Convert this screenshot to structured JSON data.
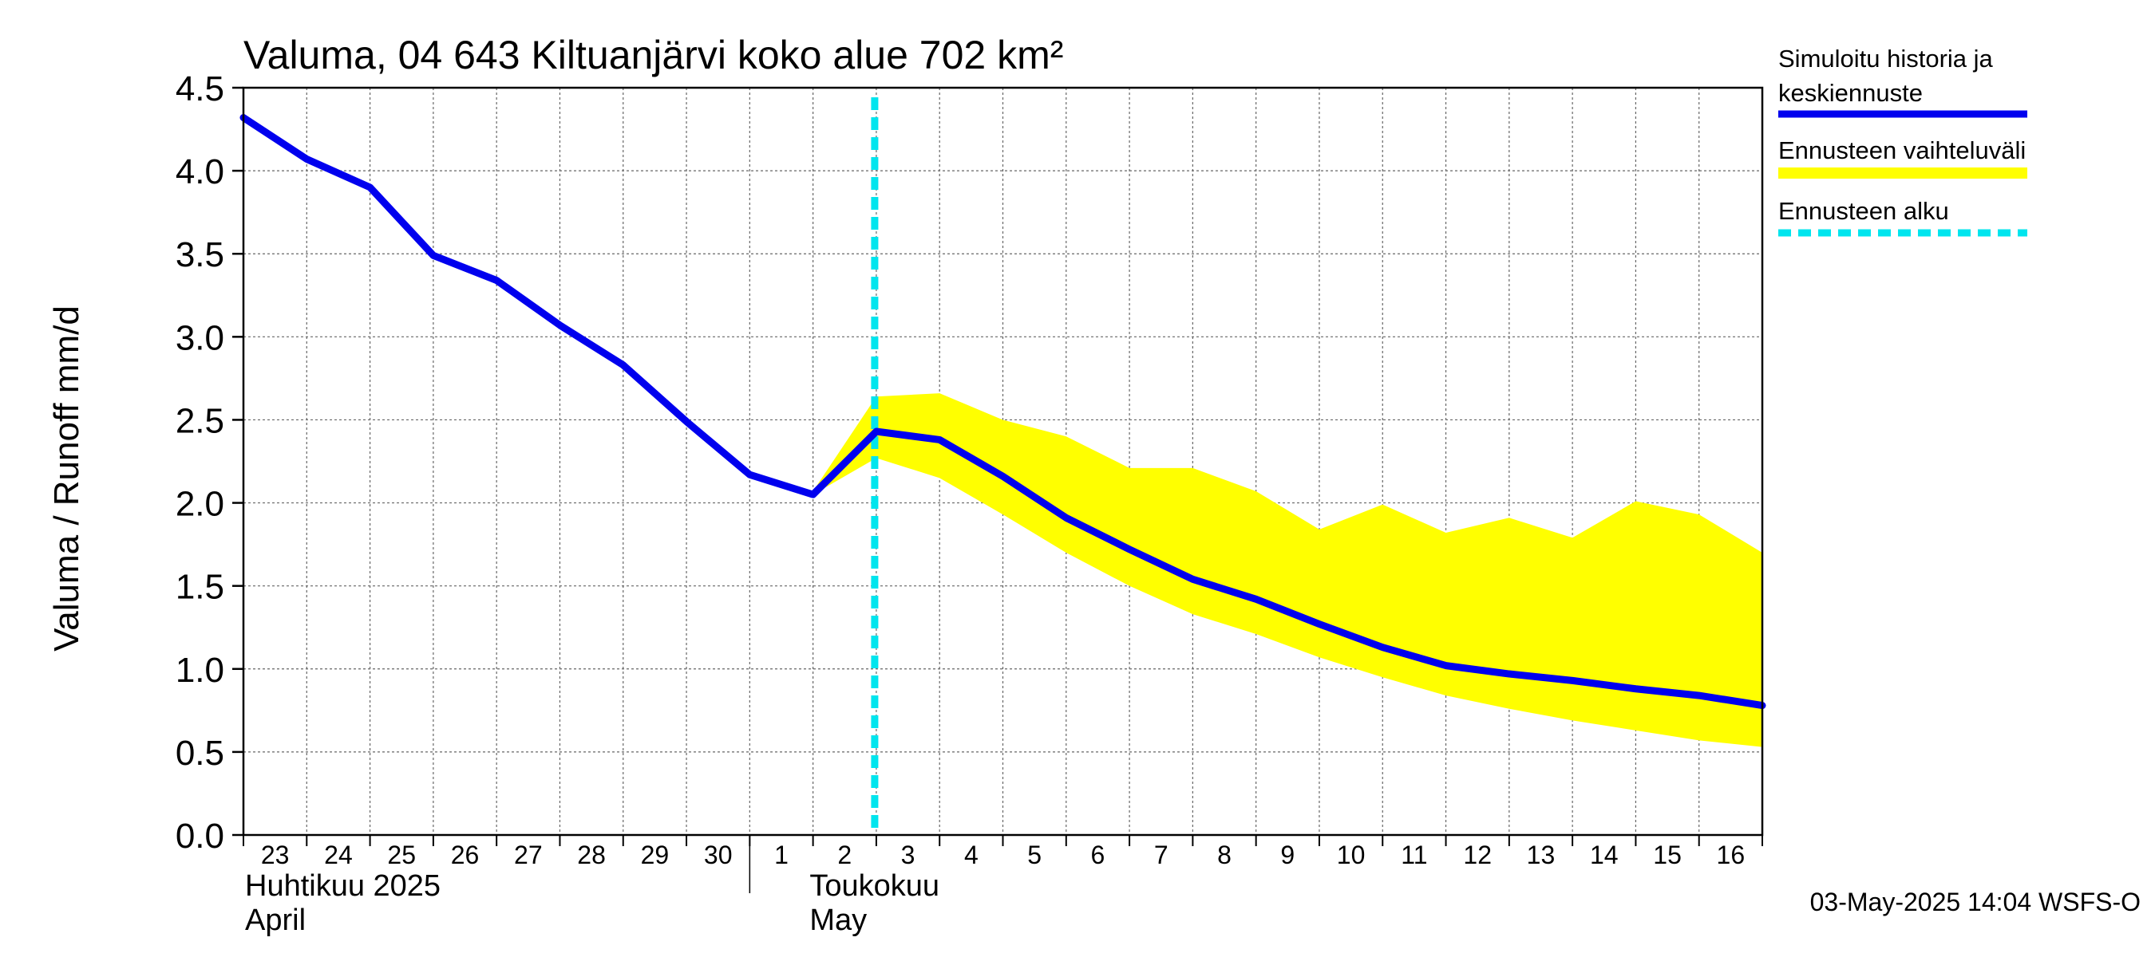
{
  "chart_data": {
    "type": "line",
    "title": "Valuma, 04 643 Kiltuanjärvi koko alue 702 km²",
    "ylabel": "Valuma / Runoff     mm/d",
    "xlabel": "",
    "ylim": [
      0,
      4.5
    ],
    "y_ticks": [
      "0.0",
      "0.5",
      "1.0",
      "1.5",
      "2.0",
      "2.5",
      "3.0",
      "3.5",
      "4.0",
      "4.5"
    ],
    "x_tick_labels": [
      "23",
      "24",
      "25",
      "26",
      "27",
      "28",
      "29",
      "30",
      "1",
      "2",
      "3",
      "4",
      "5",
      "6",
      "7",
      "8",
      "9",
      "10",
      "11",
      "12",
      "13",
      "14",
      "15",
      "16"
    ],
    "month_labels": [
      {
        "line1": "Huhtikuu  2025",
        "line2": "April",
        "start_day_index": 0
      },
      {
        "line1": "Toukokuu",
        "line2": "May",
        "start_day_index": 8
      }
    ],
    "grid": true,
    "forecast_start_date": "2025-05-03",
    "series": [
      {
        "name": "Simuloitu historia ja keskiennuste",
        "color": "#0000ee",
        "x": [
          "2025-04-23",
          "2025-04-24",
          "2025-04-25",
          "2025-04-26",
          "2025-04-27",
          "2025-04-28",
          "2025-04-29",
          "2025-04-30",
          "2025-05-01",
          "2025-05-02",
          "2025-05-03",
          "2025-05-04",
          "2025-05-05",
          "2025-05-06",
          "2025-05-07",
          "2025-05-08",
          "2025-05-09",
          "2025-05-10",
          "2025-05-11",
          "2025-05-12",
          "2025-05-13",
          "2025-05-14",
          "2025-05-15",
          "2025-05-16",
          "2025-05-17"
        ],
        "values": [
          4.32,
          4.07,
          3.9,
          3.49,
          3.34,
          3.07,
          2.83,
          2.49,
          2.17,
          2.05,
          2.43,
          2.38,
          2.16,
          1.91,
          1.72,
          1.54,
          1.42,
          1.27,
          1.13,
          1.02,
          0.97,
          0.93,
          0.88,
          0.84,
          0.78
        ]
      },
      {
        "name": "Ennusteen vaihteluväli",
        "color": "#ffff00",
        "x": [
          "2025-05-02",
          "2025-05-03",
          "2025-05-04",
          "2025-05-05",
          "2025-05-06",
          "2025-05-07",
          "2025-05-08",
          "2025-05-09",
          "2025-05-10",
          "2025-05-11",
          "2025-05-12",
          "2025-05-13",
          "2025-05-14",
          "2025-05-15",
          "2025-05-16",
          "2025-05-17"
        ],
        "lower": [
          2.05,
          2.27,
          2.15,
          1.93,
          1.7,
          1.5,
          1.33,
          1.21,
          1.07,
          0.95,
          0.84,
          0.76,
          0.69,
          0.63,
          0.57,
          0.53
        ],
        "upper": [
          2.07,
          2.64,
          2.66,
          2.5,
          2.4,
          2.21,
          2.21,
          2.07,
          1.84,
          1.99,
          1.82,
          1.91,
          1.79,
          2.01,
          1.93,
          1.7
        ]
      },
      {
        "name": "Ennusteen alku",
        "color": "#00e5ee"
      }
    ],
    "legend": {
      "position": "right",
      "entries": [
        {
          "label": "Simuloitu historia ja",
          "label2": "keskiennuste",
          "color": "#0000ee",
          "style": "solid"
        },
        {
          "label": "Ennusteen vaihteluväli",
          "color": "#ffff00",
          "style": "solid"
        },
        {
          "label": "Ennusteen alku",
          "color": "#00e5ee",
          "style": "dashed"
        }
      ]
    },
    "footer": "03-May-2025 14:04 WSFS-O"
  }
}
